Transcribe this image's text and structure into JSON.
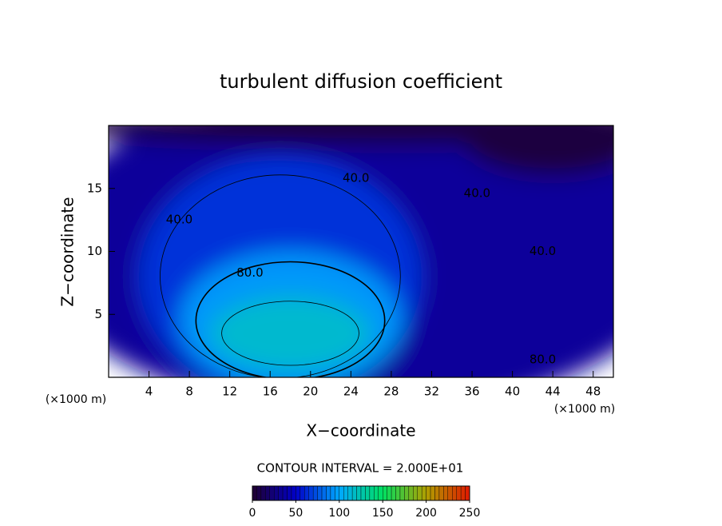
{
  "chart_data": {
    "type": "contour",
    "title": "turbulent diffusion coefficient",
    "x_label": "X−coordinate",
    "y_label": "Z−coordinate",
    "x_unit_labels": [
      "(×1000 m)",
      "(×1000 m)"
    ],
    "xlim": [
      0,
      50
    ],
    "xticks": [
      4,
      8,
      12,
      16,
      20,
      24,
      28,
      32,
      36,
      40,
      44,
      48
    ],
    "ylim": [
      0,
      20
    ],
    "yticks": [
      5,
      10,
      15
    ],
    "contour_interval_label": "CONTOUR INTERVAL = 2.000E+01",
    "colormap": [
      "#200030",
      "#0000c8",
      "#00a8ff",
      "#00e060",
      "#b0a000",
      "#e01800"
    ],
    "colorbar_lim": [
      0,
      250
    ],
    "colorbar_ticks": [
      0,
      50,
      100,
      150,
      200,
      250
    ],
    "field": [
      {
        "x": 25,
        "y": 10,
        "rx": 32,
        "ry": 13,
        "value": 35
      },
      {
        "x": 28,
        "y": 20,
        "rx": 34,
        "ry": 1.6,
        "value": 5
      },
      {
        "x": 44,
        "y": 19,
        "rx": 9,
        "ry": 3,
        "value": 5
      },
      {
        "x": 17,
        "y": 8,
        "rx": 14,
        "ry": 9.5,
        "value": 65
      },
      {
        "x": 18,
        "y": 4.5,
        "rx": 11,
        "ry": 5.5,
        "value": 95
      },
      {
        "x": 18,
        "y": 3.5,
        "rx": 8,
        "ry": 3,
        "value": 115
      }
    ],
    "contour_labels": [
      {
        "x": 24.5,
        "y": 15.8,
        "value": 40,
        "label": "40.0"
      },
      {
        "x": 36.5,
        "y": 14.6,
        "value": 40,
        "label": "40.0"
      },
      {
        "x": 7,
        "y": 12.5,
        "value": 40,
        "label": "40.0"
      },
      {
        "x": 43,
        "y": 10,
        "value": 40,
        "label": "40.0"
      },
      {
        "x": 14,
        "y": 8.3,
        "value": 80,
        "label": "80.0"
      },
      {
        "x": 43,
        "y": 1.4,
        "value": 80,
        "label": "80.0"
      }
    ]
  }
}
